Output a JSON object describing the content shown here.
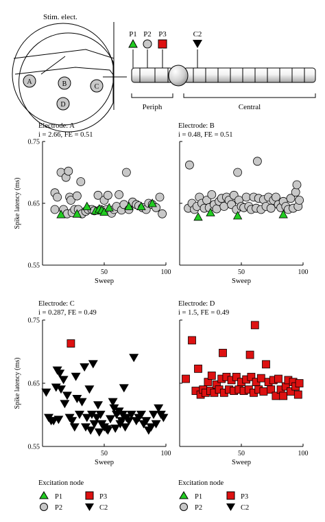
{
  "diagram": {
    "stim_label": "Stim. elect.",
    "cell_labels": [
      "A",
      "B",
      "C",
      "D"
    ],
    "node_labels": [
      "P1",
      "P2",
      "P3",
      "C2"
    ],
    "region_periph": "Periph",
    "region_central": "Central"
  },
  "colors": {
    "P1": "#22cc22",
    "P2": "#c8c8c8",
    "P3": "#dd1111",
    "C2": "#000000"
  },
  "chart_data": [
    {
      "type": "scatter",
      "title": "Electrode: A",
      "subtitle": "i = 2.66, FE = 0.51",
      "xlabel": "Sweep",
      "ylabel": "Spike latency (ms)",
      "xlim": [
        0,
        100
      ],
      "ylim": [
        0.55,
        0.75
      ],
      "xticks": [
        "50",
        "100"
      ],
      "yticks": [
        "0.75",
        "0.65",
        "0.55"
      ],
      "series": [
        {
          "name": "P2",
          "points": [
            [
              10,
              0.667
            ],
            [
              10,
              0.64
            ],
            [
              12,
              0.66
            ],
            [
              15,
              0.7
            ],
            [
              17,
              0.64
            ],
            [
              19,
              0.692
            ],
            [
              20,
              0.633
            ],
            [
              21,
              0.702
            ],
            [
              22,
              0.66
            ],
            [
              23,
              0.655
            ],
            [
              24,
              0.635
            ],
            [
              26,
              0.64
            ],
            [
              28,
              0.662
            ],
            [
              29,
              0.64
            ],
            [
              31,
              0.685
            ],
            [
              32,
              0.633
            ],
            [
              35,
              0.637
            ],
            [
              37,
              0.64
            ],
            [
              40,
              0.64
            ],
            [
              42,
              0.638
            ],
            [
              45,
              0.663
            ],
            [
              47,
              0.64
            ],
            [
              50,
              0.655
            ],
            [
              52,
              0.64
            ],
            [
              53,
              0.663
            ],
            [
              56,
              0.634
            ],
            [
              58,
              0.64
            ],
            [
              60,
              0.645
            ],
            [
              62,
              0.664
            ],
            [
              64,
              0.639
            ],
            [
              66,
              0.648
            ],
            [
              68,
              0.7
            ],
            [
              70,
              0.64
            ],
            [
              73,
              0.652
            ],
            [
              76,
              0.648
            ],
            [
              78,
              0.646
            ],
            [
              81,
              0.643
            ],
            [
              84,
              0.64
            ],
            [
              86,
              0.65
            ],
            [
              89,
              0.648
            ],
            [
              92,
              0.643
            ],
            [
              95,
              0.66
            ],
            [
              97,
              0.633
            ]
          ]
        },
        {
          "name": "P1",
          "points": [
            [
              15,
              0.632
            ],
            [
              28,
              0.633
            ],
            [
              36,
              0.645
            ],
            [
              43,
              0.638
            ],
            [
              46,
              0.641
            ],
            [
              48,
              0.639
            ],
            [
              50,
              0.636
            ],
            [
              54,
              0.643
            ],
            [
              70,
              0.645
            ],
            [
              80,
              0.645
            ],
            [
              89,
              0.65
            ]
          ]
        }
      ]
    },
    {
      "type": "scatter",
      "title": "Electrode: B",
      "subtitle": "i = 0.48, FE = 0.51",
      "xlabel": "Sweep",
      "ylabel": "",
      "xlim": [
        0,
        100
      ],
      "ylim": [
        0.55,
        0.75
      ],
      "xticks": [
        "50",
        "100"
      ],
      "yticks": [],
      "series": [
        {
          "name": "P2",
          "points": [
            [
              8,
              0.712
            ],
            [
              7,
              0.642
            ],
            [
              10,
              0.65
            ],
            [
              12,
              0.64
            ],
            [
              14,
              0.645
            ],
            [
              16,
              0.66
            ],
            [
              18,
              0.65
            ],
            [
              20,
              0.642
            ],
            [
              22,
              0.655
            ],
            [
              24,
              0.643
            ],
            [
              26,
              0.664
            ],
            [
              28,
              0.648
            ],
            [
              30,
              0.641
            ],
            [
              32,
              0.653
            ],
            [
              34,
              0.658
            ],
            [
              36,
              0.645
            ],
            [
              38,
              0.66
            ],
            [
              40,
              0.655
            ],
            [
              42,
              0.648
            ],
            [
              44,
              0.663
            ],
            [
              46,
              0.64
            ],
            [
              48,
              0.655
            ],
            [
              47,
              0.7
            ],
            [
              50,
              0.645
            ],
            [
              52,
              0.643
            ],
            [
              54,
              0.66
            ],
            [
              56,
              0.645
            ],
            [
              58,
              0.64
            ],
            [
              60,
              0.66
            ],
            [
              62,
              0.642
            ],
            [
              63,
              0.718
            ],
            [
              64,
              0.658
            ],
            [
              66,
              0.64
            ],
            [
              68,
              0.656
            ],
            [
              70,
              0.645
            ],
            [
              72,
              0.66
            ],
            [
              74,
              0.642
            ],
            [
              76,
              0.655
            ],
            [
              78,
              0.66
            ],
            [
              80,
              0.648
            ],
            [
              82,
              0.643
            ],
            [
              84,
              0.653
            ],
            [
              86,
              0.645
            ],
            [
              88,
              0.64
            ],
            [
              90,
              0.658
            ],
            [
              92,
              0.642
            ],
            [
              94,
              0.668
            ],
            [
              95,
              0.68
            ],
            [
              96,
              0.645
            ],
            [
              97,
              0.655
            ]
          ]
        },
        {
          "name": "P1",
          "points": [
            [
              15,
              0.628
            ],
            [
              25,
              0.635
            ],
            [
              47,
              0.63
            ],
            [
              84,
              0.632
            ]
          ]
        }
      ]
    },
    {
      "type": "scatter",
      "title": "Electrode: C",
      "subtitle": "i = 0.287, FE = 0.49",
      "xlabel": "Sweep",
      "ylabel": "Spike latency (ms)",
      "xlim": [
        0,
        100
      ],
      "ylim": [
        0.55,
        0.75
      ],
      "xticks": [
        "50",
        "100"
      ],
      "yticks": [
        "0.75",
        "0.65",
        "0.55"
      ],
      "series": [
        {
          "name": "P3",
          "points": [
            [
              23,
              0.713
            ]
          ]
        },
        {
          "name": "C2",
          "points": [
            [
              3,
              0.635
            ],
            [
              5,
              0.595
            ],
            [
              7,
              0.59
            ],
            [
              9,
              0.59
            ],
            [
              11,
              0.643
            ],
            [
              12,
              0.67
            ],
            [
              13,
              0.592
            ],
            [
              14,
              0.665
            ],
            [
              15,
              0.64
            ],
            [
              17,
              0.655
            ],
            [
              18,
              0.617
            ],
            [
              20,
              0.63
            ],
            [
              22,
              0.595
            ],
            [
              24,
              0.59
            ],
            [
              26,
              0.58
            ],
            [
              27,
              0.66
            ],
            [
              28,
              0.625
            ],
            [
              30,
              0.6
            ],
            [
              32,
              0.62
            ],
            [
              34,
              0.675
            ],
            [
              35,
              0.58
            ],
            [
              36,
              0.595
            ],
            [
              38,
              0.64
            ],
            [
              39,
              0.575
            ],
            [
              40,
              0.6
            ],
            [
              41,
              0.68
            ],
            [
              42,
              0.585
            ],
            [
              44,
              0.595
            ],
            [
              45,
              0.615
            ],
            [
              46,
              0.572
            ],
            [
              47,
              0.6
            ],
            [
              48,
              0.585
            ],
            [
              50,
              0.58
            ],
            [
              52,
              0.577
            ],
            [
              53,
              0.575
            ],
            [
              55,
              0.593
            ],
            [
              57,
              0.62
            ],
            [
              58,
              0.61
            ],
            [
              59,
              0.578
            ],
            [
              60,
              0.6
            ],
            [
              62,
              0.605
            ],
            [
              63,
              0.585
            ],
            [
              64,
              0.59
            ],
            [
              65,
              0.6
            ],
            [
              66,
              0.642
            ],
            [
              67,
              0.58
            ],
            [
              68,
              0.595
            ],
            [
              70,
              0.59
            ],
            [
              72,
              0.6
            ],
            [
              74,
              0.69
            ],
            [
              76,
              0.59
            ],
            [
              78,
              0.595
            ],
            [
              80,
              0.6
            ],
            [
              82,
              0.585
            ],
            [
              84,
              0.59
            ],
            [
              86,
              0.575
            ],
            [
              88,
              0.58
            ],
            [
              90,
              0.6
            ],
            [
              92,
              0.585
            ],
            [
              94,
              0.61
            ],
            [
              96,
              0.6
            ],
            [
              98,
              0.595
            ]
          ]
        }
      ]
    },
    {
      "type": "scatter",
      "title": "Electrode: D",
      "subtitle": "i = 1.5, FE = 0.49",
      "xlabel": "Sweep",
      "ylabel": "",
      "xlim": [
        0,
        100
      ],
      "ylim": [
        0.55,
        0.75
      ],
      "xticks": [
        "50",
        "100"
      ],
      "yticks": [],
      "series": [
        {
          "name": "P3",
          "points": [
            [
              5,
              0.657
            ],
            [
              10,
              0.718
            ],
            [
              13,
              0.638
            ],
            [
              15,
              0.673
            ],
            [
              17,
              0.632
            ],
            [
              19,
              0.64
            ],
            [
              21,
              0.635
            ],
            [
              23,
              0.652
            ],
            [
              25,
              0.638
            ],
            [
              26,
              0.662
            ],
            [
              28,
              0.635
            ],
            [
              30,
              0.648
            ],
            [
              32,
              0.64
            ],
            [
              34,
              0.657
            ],
            [
              35,
              0.698
            ],
            [
              36,
              0.635
            ],
            [
              38,
              0.66
            ],
            [
              40,
              0.64
            ],
            [
              42,
              0.655
            ],
            [
              44,
              0.638
            ],
            [
              46,
              0.66
            ],
            [
              48,
              0.64
            ],
            [
              50,
              0.652
            ],
            [
              52,
              0.638
            ],
            [
              54,
              0.656
            ],
            [
              56,
              0.64
            ],
            [
              57,
              0.695
            ],
            [
              58,
              0.66
            ],
            [
              60,
              0.635
            ],
            [
              61,
              0.742
            ],
            [
              62,
              0.652
            ],
            [
              64,
              0.64
            ],
            [
              66,
              0.658
            ],
            [
              68,
              0.637
            ],
            [
              70,
              0.68
            ],
            [
              72,
              0.652
            ],
            [
              74,
              0.64
            ],
            [
              76,
              0.655
            ],
            [
              78,
              0.63
            ],
            [
              80,
              0.657
            ],
            [
              82,
              0.64
            ],
            [
              84,
              0.63
            ],
            [
              86,
              0.645
            ],
            [
              88,
              0.655
            ],
            [
              90,
              0.637
            ],
            [
              92,
              0.652
            ],
            [
              94,
              0.645
            ],
            [
              96,
              0.632
            ],
            [
              97,
              0.65
            ]
          ]
        }
      ]
    }
  ],
  "legend": {
    "title": "Excitation node",
    "items": [
      "P1",
      "P3",
      "P2",
      "C2"
    ]
  }
}
